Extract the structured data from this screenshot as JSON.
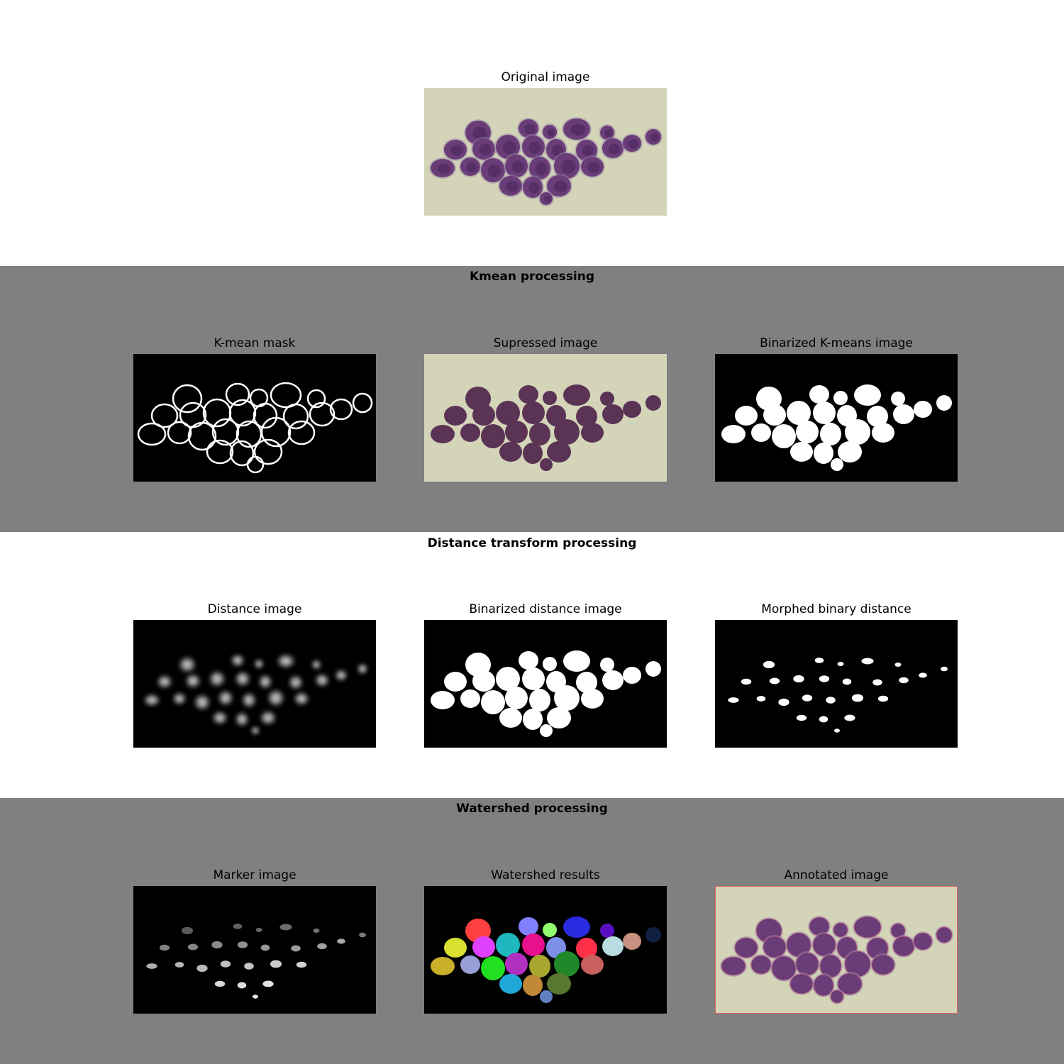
{
  "top": {
    "title": "Original image"
  },
  "sections": [
    {
      "title": "Kmean processing",
      "panels": [
        "K-mean mask",
        "Supressed image",
        "Binarized K-means image"
      ]
    },
    {
      "title": "Distance transform processing",
      "panels": [
        "Distance image",
        "Binarized distance image",
        "Morphed binary distance"
      ]
    },
    {
      "title": "Watershed processing",
      "panels": [
        "Marker image",
        "Watershed results",
        "Annotated image"
      ]
    }
  ],
  "colors": {
    "band_gray": "#808080",
    "band_white": "#ffffff",
    "stain_background": "#d4d4b8",
    "suppressed_cell": "#5a3355",
    "cell_purple": "#6a3d78"
  }
}
